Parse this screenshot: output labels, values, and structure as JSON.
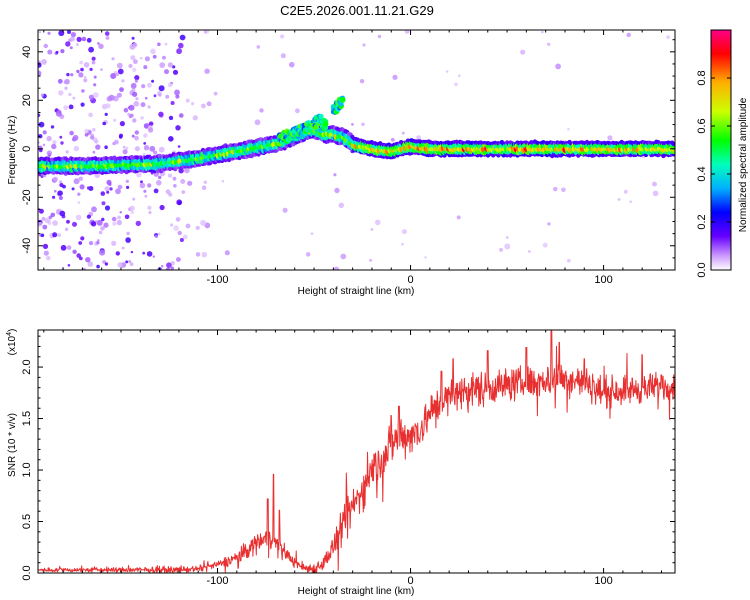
{
  "title": "C2E5.2026.001.11.21.G29",
  "colors": {
    "snr_line": "#e83030",
    "cmap": [
      "#ffffff",
      "#cc99ff",
      "#6600ff",
      "#0000ff",
      "#00b0ff",
      "#00ffbb",
      "#00ff00",
      "#ccff00",
      "#ffb000",
      "#ff0000",
      "#ff0088"
    ]
  },
  "chart_data": [
    {
      "type": "heatmap",
      "name": "spectrogram",
      "xlabel": "Height of straight line (km)",
      "ylabel": "Frequency (Hz)",
      "xlim": [
        -193,
        137
      ],
      "ylim": [
        -50,
        49
      ],
      "xticks": [
        -100,
        0,
        100
      ],
      "xtick_labels": [
        "-100",
        "0",
        "100"
      ],
      "yticks": [
        -40,
        -20,
        0,
        20,
        40
      ],
      "ytick_labels": [
        "-40",
        "-20",
        "0",
        "20",
        "40"
      ],
      "ridge": {
        "x": [
          -193,
          -160,
          -130,
          -110,
          -90,
          -70,
          -60,
          -50,
          -45,
          -40,
          -35,
          -30,
          -20,
          -10,
          0,
          10,
          20,
          40,
          60,
          80,
          100,
          120,
          137
        ],
        "y": [
          -7,
          -7,
          -6,
          -4,
          -1,
          2,
          5,
          8,
          6,
          6,
          5,
          2,
          0,
          -1,
          1,
          0,
          0,
          0,
          0,
          0,
          0,
          0,
          0
        ]
      },
      "branches": [
        {
          "x": [
            -68,
            -55,
            -47,
            -44
          ],
          "y": [
            4,
            8,
            12,
            10
          ]
        },
        {
          "x": [
            -40,
            -35
          ],
          "y": [
            16,
            20
          ]
        }
      ],
      "colorbar": {
        "label": "Normalized spectral amplitude",
        "min": 0,
        "max": 1,
        "ticks": [
          0.0,
          0.2,
          0.4,
          0.6,
          0.8
        ],
        "tick_labels": [
          "0.0",
          "0.2",
          "0.4",
          "0.6",
          "0.8"
        ]
      }
    },
    {
      "type": "line",
      "name": "snr",
      "xlabel": "Height of straight line (km)",
      "ylabel": "SNR (10 * v/v)",
      "scale_label": "(x10",
      "scale_exp": "4",
      "scale_close": ")",
      "xlim": [
        -193,
        137
      ],
      "ylim": [
        0,
        23600
      ],
      "xticks": [
        -100,
        0,
        100
      ],
      "xtick_labels": [
        "-100",
        "0",
        "100"
      ],
      "yticks": [
        0,
        5000,
        10000,
        15000,
        20000
      ],
      "ytick_labels": [
        "0.0",
        "0.5",
        "1.0",
        "1.5",
        "2.0"
      ],
      "envelope": {
        "x": [
          -193,
          -120,
          -110,
          -100,
          -90,
          -80,
          -75,
          -70,
          -65,
          -60,
          -55,
          -50,
          -45,
          -40,
          -35,
          -30,
          -25,
          -20,
          -15,
          -10,
          -5,
          0,
          5,
          10,
          15,
          20,
          25,
          30,
          40,
          50,
          60,
          70,
          80,
          90,
          100,
          110,
          120,
          130,
          137
        ],
        "y": [
          300,
          300,
          400,
          800,
          1500,
          2900,
          3600,
          3100,
          2000,
          1000,
          500,
          400,
          1000,
          2500,
          4500,
          6500,
          8000,
          10000,
          11000,
          12500,
          13500,
          13300,
          14000,
          15500,
          16500,
          17000,
          17500,
          17800,
          18000,
          18300,
          18500,
          18700,
          19000,
          18500,
          17500,
          17800,
          17800,
          18200,
          18000
        ]
      },
      "noise": {
        "x": [
          -193,
          -100,
          -80,
          -60,
          -45,
          -35,
          -10,
          20,
          137
        ],
        "y": [
          150,
          250,
          800,
          350,
          500,
          1300,
          1500,
          1300,
          1000
        ]
      },
      "spikes": [
        {
          "x": -71,
          "y": 9600
        },
        {
          "x": -68,
          "y": 6100
        },
        {
          "x": -74,
          "y": 7200
        },
        {
          "x": -10,
          "y": 15300
        },
        {
          "x": -6,
          "y": 16200
        },
        {
          "x": 16,
          "y": 19600
        },
        {
          "x": 22,
          "y": 20800
        },
        {
          "x": 40,
          "y": 21600
        },
        {
          "x": 60,
          "y": 21900
        },
        {
          "x": 73,
          "y": 23500
        },
        {
          "x": 77,
          "y": 22400
        },
        {
          "x": 90,
          "y": 20800
        },
        {
          "x": 120,
          "y": 21200
        },
        {
          "x": 130,
          "y": 19200
        }
      ]
    }
  ]
}
